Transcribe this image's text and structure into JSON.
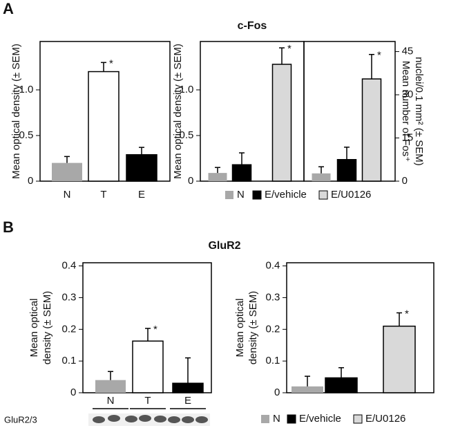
{
  "figure": {
    "panel_a": "A",
    "panel_b": "B",
    "blot_label": "GluR2/3"
  },
  "chart_data": [
    {
      "type": "bar",
      "ylabel": "Mean optical density (± SEM)",
      "categories": [
        "N",
        "T",
        "E"
      ],
      "values": [
        0.2,
        1.2,
        0.29
      ],
      "errors": [
        0.07,
        0.1,
        0.08
      ],
      "colors": [
        "#a8a8a8",
        "#ffffff",
        "#000000"
      ],
      "annotations": [
        null,
        "*",
        null
      ],
      "ylim": [
        0,
        1.53
      ],
      "yticks": [
        0,
        0.5,
        {
          "value": 1,
          "label": "1.0"
        }
      ]
    },
    {
      "type": "bar",
      "title": "c-Fos",
      "ylabel": "Mean optical density (± SEM)",
      "series": [
        {
          "name": "N",
          "color": "#a8a8a8",
          "values": [
            0.09
          ],
          "errors": [
            0.06
          ]
        },
        {
          "name": "E/vehicle",
          "color": "#000000",
          "values": [
            0.18
          ],
          "errors": [
            0.13
          ]
        },
        {
          "name": "E/U0126",
          "color": "#d9d9d9",
          "values": [
            1.28
          ],
          "errors": [
            0.18
          ],
          "annotations": [
            "*"
          ]
        }
      ],
      "ylim": [
        0,
        1.53
      ],
      "yticks": [
        0,
        0.5,
        {
          "value": 1,
          "label": "1.0"
        }
      ],
      "legend": "bottom"
    },
    {
      "type": "bar",
      "y2label": [
        "Mean number of Fos⁺",
        "nuclei/0.1 mm² (± SEM)"
      ],
      "series": [
        {
          "name": "N",
          "color": "#a8a8a8",
          "values": [
            2.7
          ],
          "errors": [
            2.3
          ],
          "axis": "y2"
        },
        {
          "name": "E/vehicle",
          "color": "#000000",
          "values": [
            7.5
          ],
          "errors": [
            4.3
          ],
          "axis": "y2"
        },
        {
          "name": "E/U0126",
          "color": "#d9d9d9",
          "values": [
            35.5
          ],
          "errors": [
            8.5
          ],
          "axis": "y2",
          "annotations": [
            "*"
          ]
        }
      ],
      "y2lim": [
        0,
        48.5
      ],
      "y2ticks": [
        0,
        15,
        30,
        45
      ]
    },
    {
      "type": "bar",
      "title": "GluR2",
      "ylabel": [
        "Mean optical",
        "density (± SEM)"
      ],
      "categories": [
        "N",
        "T",
        "E"
      ],
      "values": [
        0.04,
        0.163,
        0.03
      ],
      "errors": [
        0.027,
        0.04,
        0.08
      ],
      "colors": [
        "#a8a8a8",
        "#ffffff",
        "#000000"
      ],
      "annotations": [
        null,
        "*",
        null
      ],
      "ylim": [
        0,
        0.41
      ],
      "yticks": [
        0,
        0.1,
        0.2,
        0.3,
        0.4
      ]
    },
    {
      "type": "bar",
      "ylabel": [
        "Mean optical",
        "density (± SEM)"
      ],
      "series": [
        {
          "name": "N",
          "color": "#a8a8a8",
          "values": [
            0.02
          ],
          "errors": [
            0.032
          ]
        },
        {
          "name": "E/vehicle",
          "color": "#000000",
          "values": [
            0.047
          ],
          "errors": [
            0.032
          ]
        },
        {
          "name": "E/U0126",
          "color": "#d9d9d9",
          "values": [
            0.21
          ],
          "errors": [
            0.042
          ],
          "annotations": [
            "*"
          ]
        }
      ],
      "ylim": [
        0,
        0.41
      ],
      "yticks": [
        0,
        0.1,
        0.2,
        0.3,
        0.4
      ],
      "legend": "bottom"
    }
  ]
}
